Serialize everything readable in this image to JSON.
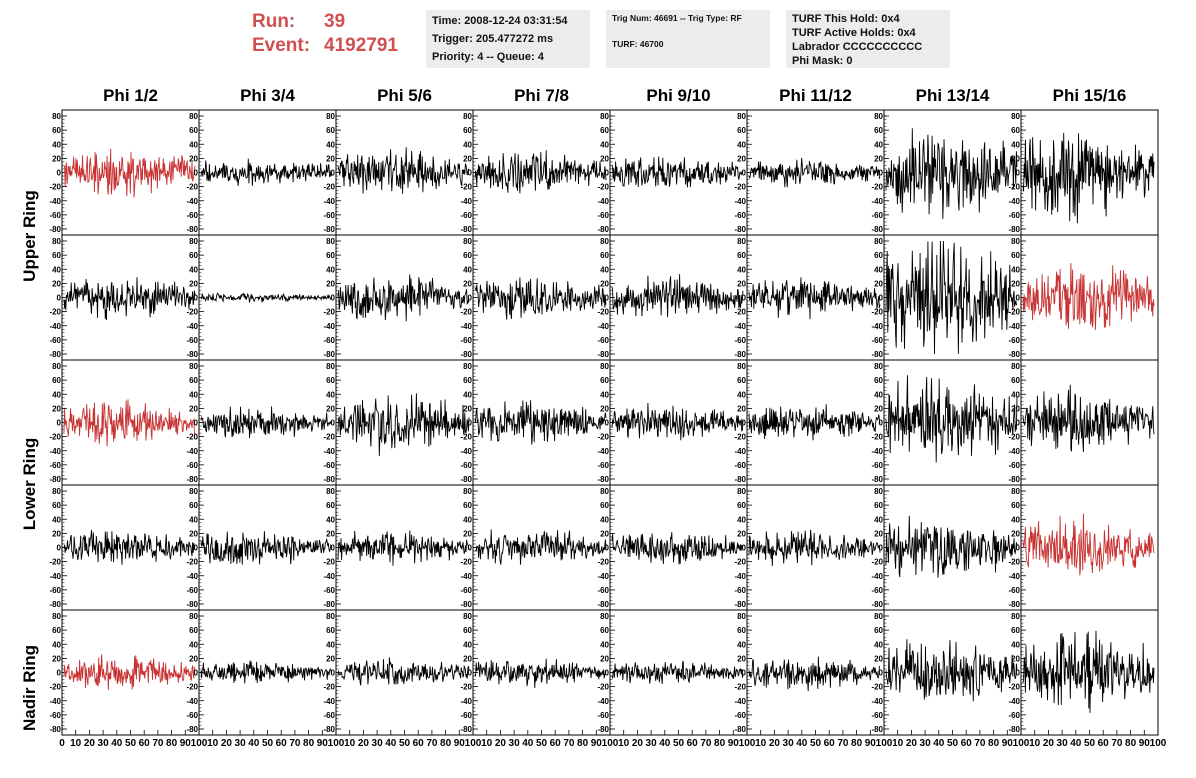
{
  "header": {
    "run_label": "Run:",
    "run_value": "39",
    "event_label": "Event:",
    "event_value": "4192791",
    "time_info": [
      "Time: 2008-12-24 03:31:54",
      "Trigger: 205.477272 ms",
      "Priority: 4 -- Queue: 4"
    ],
    "trig_info": [
      "Trig Num: 46691 -- Trig Type: RF",
      "TURF: 46700"
    ],
    "turf_info": [
      "TURF This Hold: 0x4",
      "TURF Active Holds: 0x4",
      "Labrador CCCCCCCCCC",
      "Phi Mask: 0"
    ]
  },
  "chart_data": {
    "type": "line",
    "columns": [
      "Phi 1/2",
      "Phi 3/4",
      "Phi 5/6",
      "Phi 7/8",
      "Phi 9/10",
      "Phi 11/12",
      "Phi 13/14",
      "Phi 15/16"
    ],
    "rows": [
      "Upper Ring",
      "Lower Ring",
      "Nadir Ring"
    ],
    "ylim": [
      -80,
      80
    ],
    "yticks": [
      "80",
      "60",
      "40",
      "20",
      "0",
      "-20",
      "-40",
      "-60",
      "-80"
    ],
    "xlim": [
      0,
      100
    ],
    "xtick_first": [
      "0",
      "10",
      "20",
      "30",
      "40",
      "50",
      "60",
      "70",
      "80",
      "90",
      "100"
    ],
    "xtick_rest": [
      "",
      "10",
      "20",
      "30",
      "40",
      "50",
      "60",
      "70",
      "80",
      "90",
      "100"
    ],
    "waveform_color_normal": "#000000",
    "waveform_color_highlight": "#c83232",
    "panel_amplitudes": [
      [
        22,
        12,
        20,
        18,
        15,
        12,
        40,
        40
      ],
      [
        18,
        4,
        20,
        18,
        18,
        18,
        50,
        30
      ],
      [
        20,
        15,
        25,
        18,
        15,
        15,
        40,
        28
      ],
      [
        15,
        15,
        15,
        15,
        15,
        15,
        28,
        28
      ],
      [
        15,
        10,
        12,
        12,
        10,
        15,
        28,
        35
      ]
    ],
    "highlighted_panels": [
      [
        0,
        0
      ],
      [
        1,
        7
      ],
      [
        2,
        0
      ],
      [
        3,
        7
      ],
      [
        4,
        0
      ]
    ]
  }
}
